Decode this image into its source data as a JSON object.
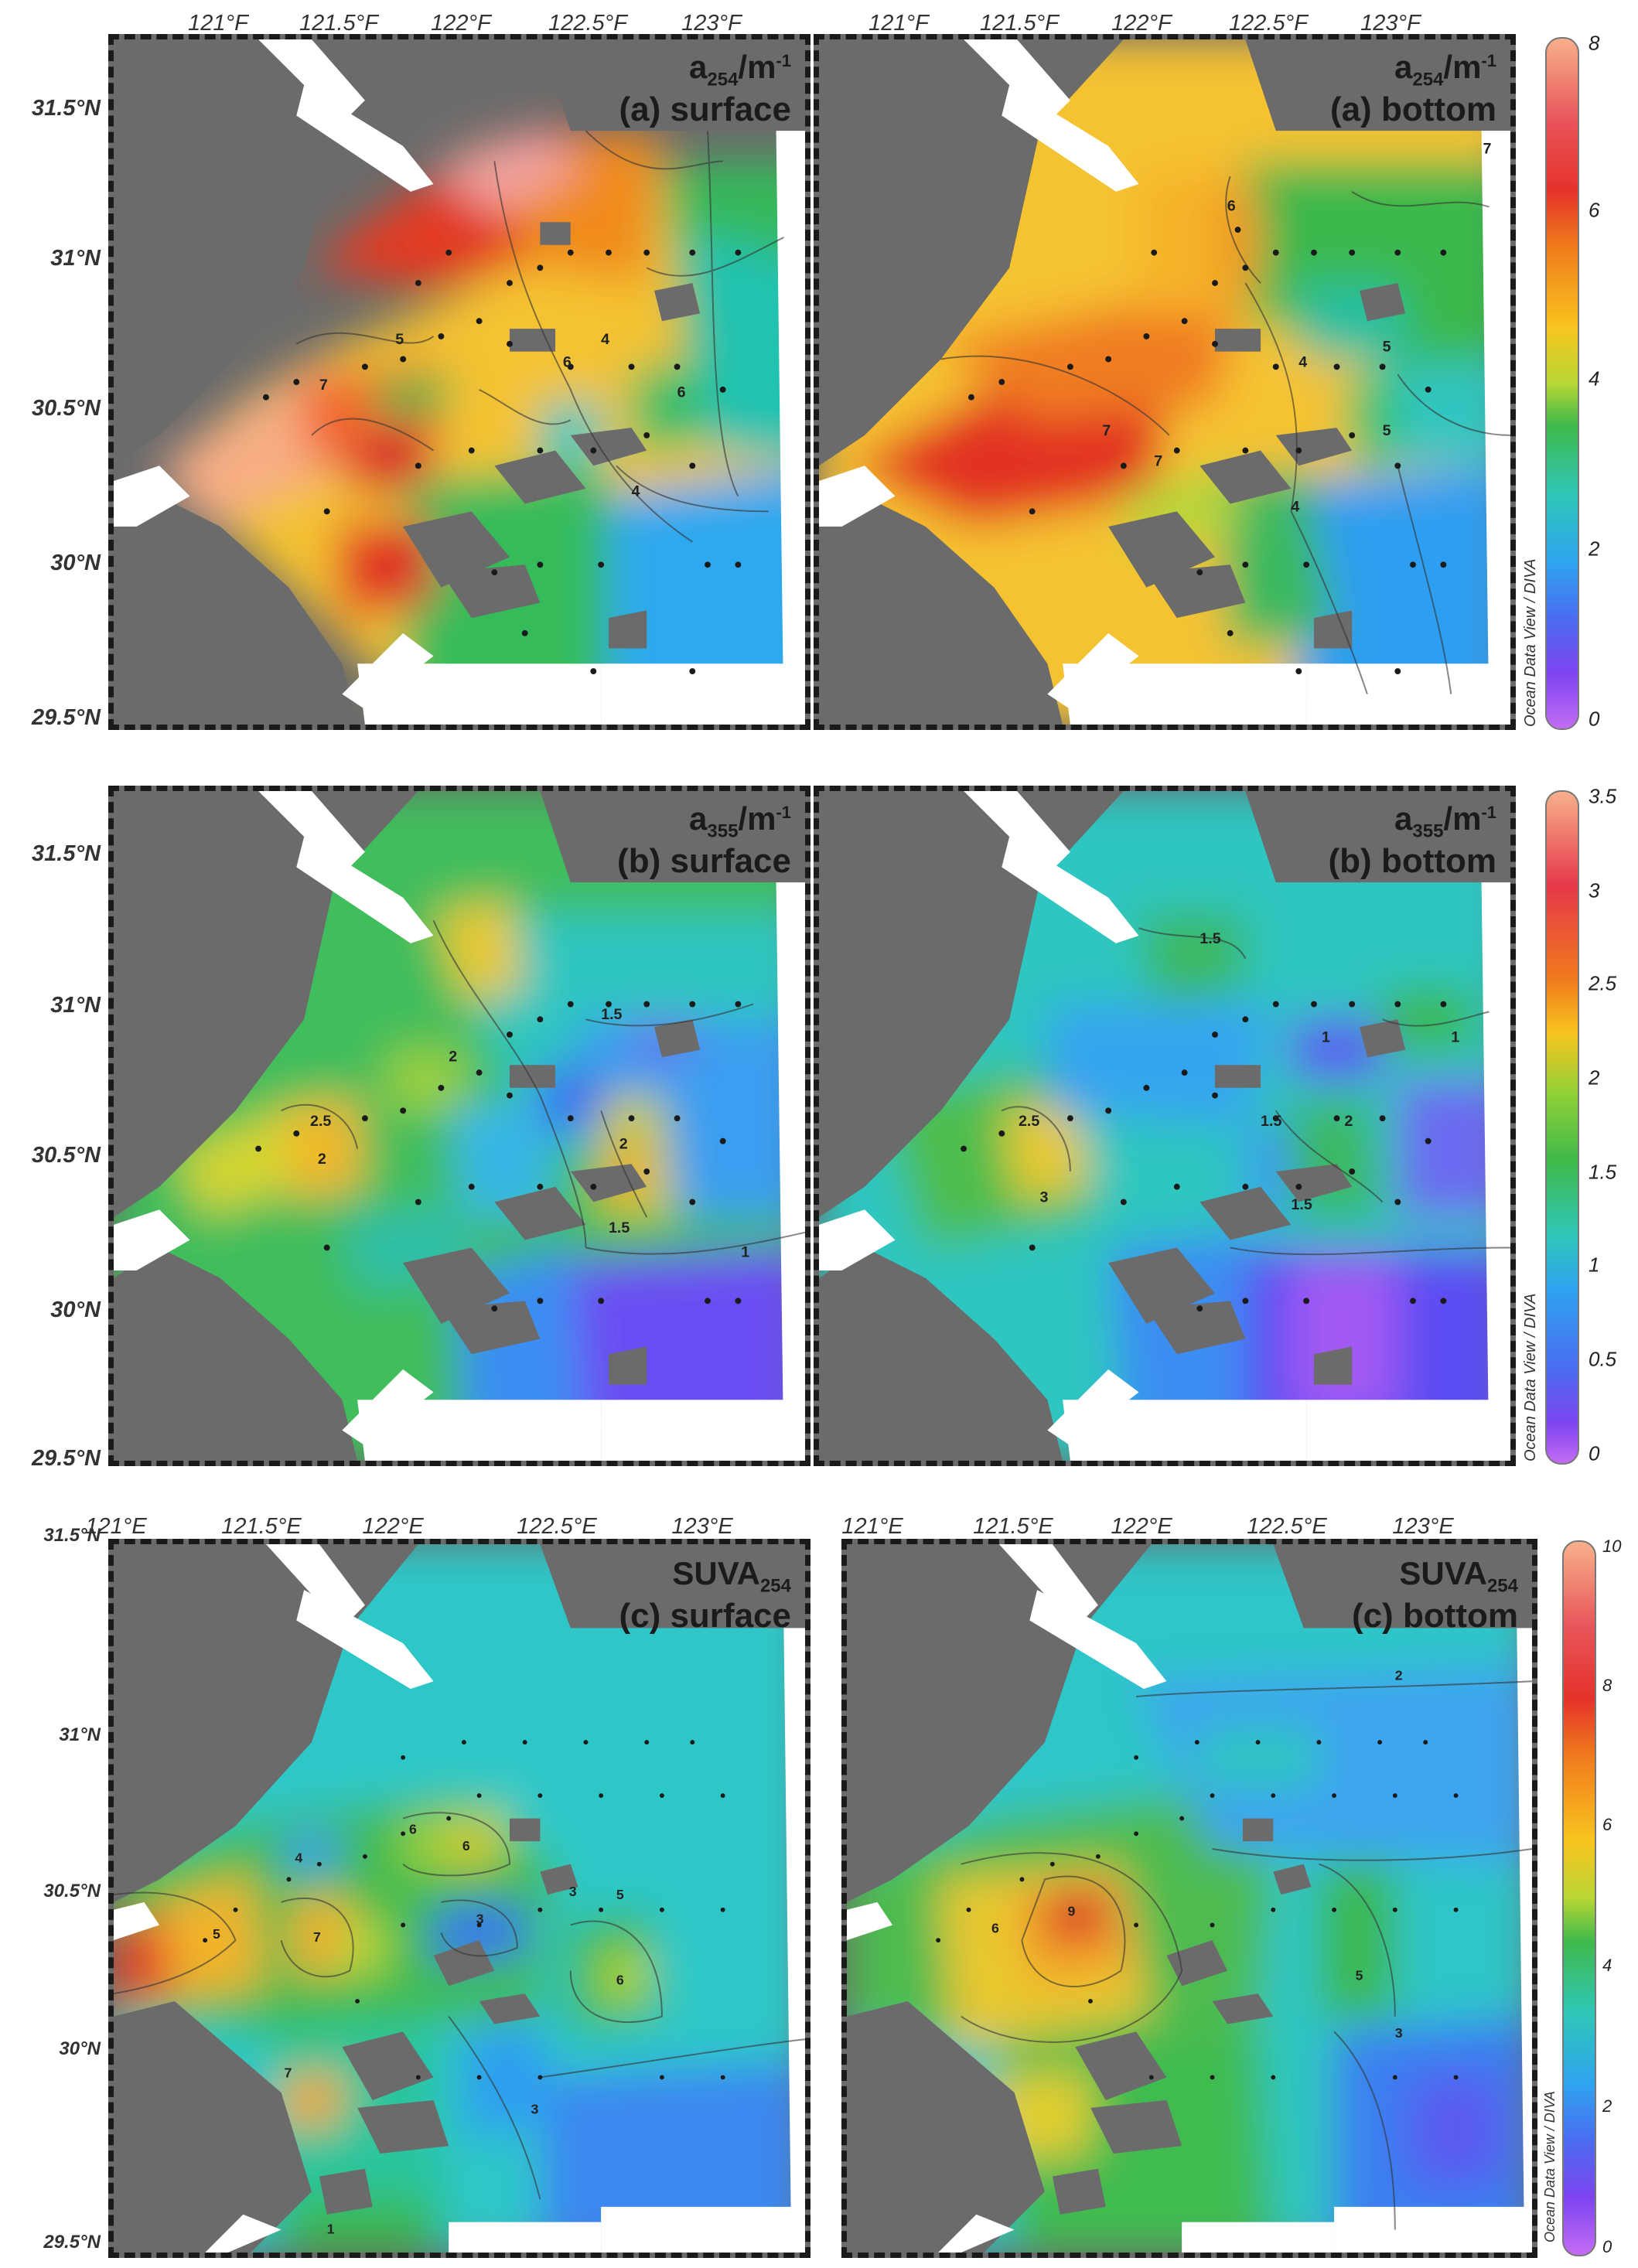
{
  "panels": [
    {
      "title_main": "a",
      "title_sub": "254",
      "title_unit": "/m",
      "title_sup": "-1",
      "label": "(a) surface"
    },
    {
      "title_main": "a",
      "title_sub": "254",
      "title_unit": "/m",
      "title_sup": "-1",
      "label": "(a) bottom"
    },
    {
      "title_main": "a",
      "title_sub": "355",
      "title_unit": "/m",
      "title_sup": "-1",
      "label": "(b) surface"
    },
    {
      "title_main": "a",
      "title_sub": "355",
      "title_unit": "/m",
      "title_sup": "-1",
      "label": "(b) bottom"
    },
    {
      "title_main": "SUVA",
      "title_sub": "254",
      "title_unit": "",
      "title_sup": "",
      "label": "(c) surface"
    },
    {
      "title_main": "SUVA",
      "title_sub": "254",
      "title_unit": "",
      "title_sup": "",
      "label": "(c) bottom"
    }
  ],
  "axes": {
    "latitudes": [
      "31.5°N",
      "31°N",
      "30.5°N",
      "30°N",
      "29.5°N"
    ],
    "longitudes_top": [
      "121°F",
      "121.5°F",
      "122°F",
      "122.5°F",
      "123°F"
    ],
    "longitudes_bottom_row": [
      "121°E",
      "121.5°E",
      "122°E",
      "122.5°E",
      "123°E"
    ]
  },
  "colorbars": [
    {
      "ticks": [
        "8",
        "6",
        "4",
        "2",
        "0"
      ],
      "label": "Ocean Data View / DIVA"
    },
    {
      "ticks": [
        "3.5",
        "3",
        "2.5",
        "2",
        "1.5",
        "1",
        "0.5",
        "0"
      ],
      "label": "Ocean Data View / DIVA"
    },
    {
      "ticks": [
        "10",
        "8",
        "6",
        "4",
        "2",
        "0"
      ],
      "label": "Ocean Data View / DIVA"
    }
  ],
  "contour_labels": {
    "a254_surface": [
      "5",
      "7",
      "6",
      "4",
      "6",
      "4"
    ],
    "a254_bottom": [
      "6",
      "7",
      "7",
      "4",
      "5",
      "5",
      "4",
      "7"
    ],
    "a355_surface": [
      "2",
      "2.5",
      "2",
      "1.5",
      "2",
      "1.5",
      "1"
    ],
    "a355_bottom": [
      "1.5",
      "2.5",
      "3",
      "1.5",
      "2",
      "1.5",
      "1",
      "1"
    ],
    "suva_surface": [
      "5",
      "7",
      "6",
      "6",
      "4",
      "3",
      "6",
      "5",
      "3",
      "3",
      "1",
      "7"
    ],
    "suva_bottom": [
      "2",
      "9",
      "6",
      "5",
      "3"
    ]
  },
  "colors": {
    "land": "#6b6b6b",
    "frame": "#1a1a1a"
  }
}
